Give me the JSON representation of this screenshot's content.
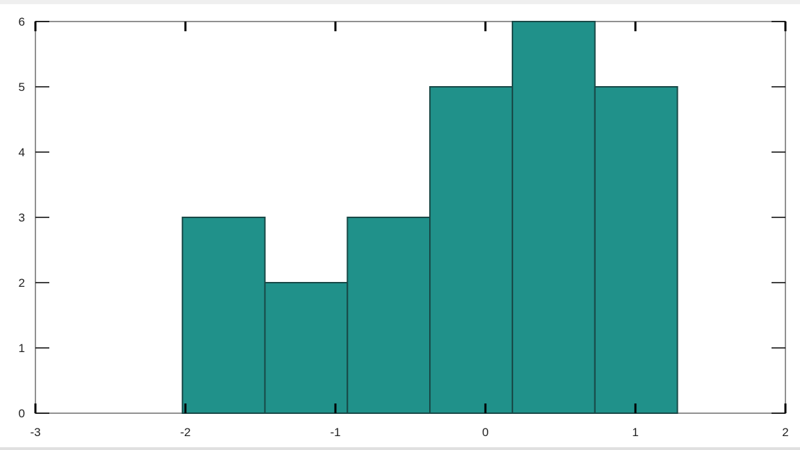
{
  "chart_data": {
    "type": "bar",
    "subtype": "histogram",
    "title": "",
    "xlabel": "",
    "ylabel": "",
    "xlim": [
      -3,
      2
    ],
    "ylim": [
      0,
      6
    ],
    "xticks": [
      -3,
      -2,
      -1,
      0,
      1,
      2
    ],
    "yticks": [
      0,
      1,
      2,
      3,
      4,
      5,
      6
    ],
    "bin_edges": [
      -2.02,
      -1.47,
      -0.92,
      -0.37,
      0.18,
      0.73,
      1.28
    ],
    "values": [
      3,
      2,
      3,
      5,
      6,
      5
    ],
    "grid": false,
    "colors": {
      "bar_fill": "#20918a",
      "bar_edge": "#184846",
      "frame": "#909090",
      "ticks": "#000000"
    }
  }
}
